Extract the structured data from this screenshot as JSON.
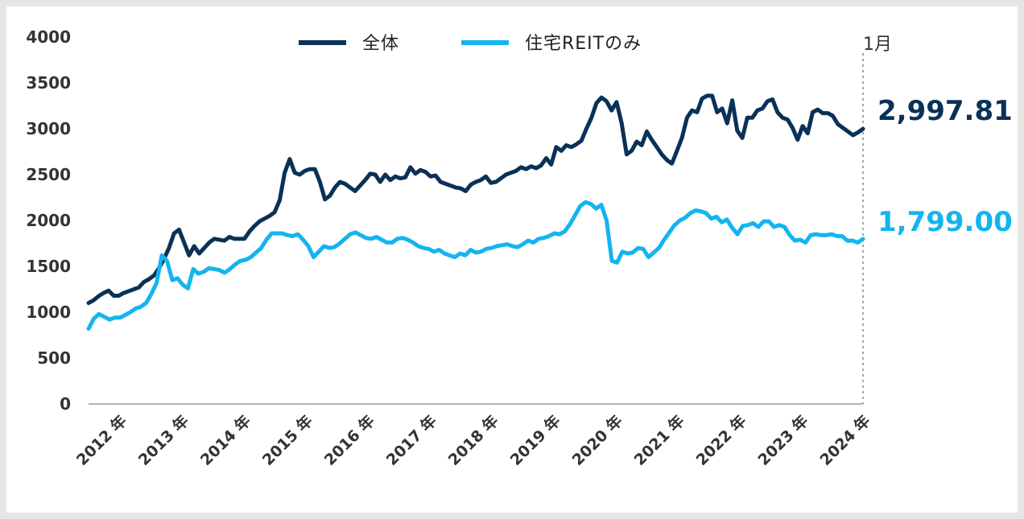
{
  "chart_data": {
    "type": "line",
    "title": "",
    "xlabel": "",
    "ylabel": "",
    "ylim": [
      0,
      4000
    ],
    "y_ticks": [
      "4000",
      "3500",
      "3000",
      "2500",
      "2000",
      "1500",
      "1000",
      "500",
      "0"
    ],
    "x_tick_labels": [
      "2012 年",
      "2013 年",
      "2014 年",
      "2015 年",
      "2016 年",
      "2017 年",
      "2018 年",
      "2019 年",
      "2020 年",
      "2021 年",
      "2022 年",
      "2023 年",
      "2024 年"
    ],
    "x_ticks_at": [
      2012,
      2013,
      2014,
      2015,
      2016,
      2017,
      2018,
      2019,
      2020,
      2021,
      2022,
      2023,
      2024
    ],
    "x_start": 2011.5,
    "current_marker": {
      "x": 2024,
      "label": "1月"
    },
    "legend_position": "top-center",
    "grid": false,
    "series": [
      {
        "name": "全体",
        "color": "#0a3157",
        "end_label": "2,997.81",
        "values": [
          1100,
          1130,
          1175,
          1210,
          1235,
          1180,
          1180,
          1210,
          1230,
          1250,
          1270,
          1330,
          1360,
          1400,
          1480,
          1580,
          1700,
          1860,
          1900,
          1760,
          1620,
          1720,
          1640,
          1700,
          1760,
          1800,
          1790,
          1780,
          1820,
          1800,
          1800,
          1800,
          1880,
          1940,
          1990,
          2020,
          2050,
          2090,
          2220,
          2520,
          2670,
          2520,
          2500,
          2540,
          2560,
          2560,
          2420,
          2230,
          2270,
          2360,
          2420,
          2400,
          2360,
          2320,
          2380,
          2440,
          2510,
          2500,
          2420,
          2500,
          2440,
          2480,
          2460,
          2470,
          2580,
          2510,
          2550,
          2530,
          2480,
          2490,
          2420,
          2400,
          2380,
          2360,
          2350,
          2320,
          2390,
          2420,
          2440,
          2480,
          2410,
          2420,
          2460,
          2500,
          2520,
          2540,
          2580,
          2560,
          2590,
          2570,
          2600,
          2680,
          2610,
          2800,
          2760,
          2820,
          2800,
          2830,
          2870,
          3000,
          3120,
          3280,
          3340,
          3300,
          3200,
          3290,
          3060,
          2720,
          2760,
          2860,
          2820,
          2970,
          2880,
          2800,
          2720,
          2660,
          2620,
          2760,
          2900,
          3120,
          3200,
          3180,
          3330,
          3360,
          3360,
          3180,
          3220,
          3060,
          3310,
          2980,
          2900,
          3120,
          3120,
          3200,
          3220,
          3300,
          3320,
          3180,
          3120,
          3100,
          3010,
          2880,
          3030,
          2950,
          3180,
          3210,
          3170,
          3170,
          3140,
          3050,
          3010,
          2970,
          2930,
          2960,
          2997.81
        ]
      },
      {
        "name": "住宅REITのみ",
        "color": "#14b4ef",
        "end_label": "1,799.00",
        "values": [
          820,
          930,
          980,
          950,
          920,
          940,
          940,
          970,
          1000,
          1040,
          1060,
          1100,
          1200,
          1320,
          1620,
          1560,
          1350,
          1370,
          1300,
          1260,
          1470,
          1420,
          1440,
          1480,
          1470,
          1460,
          1430,
          1470,
          1520,
          1560,
          1570,
          1600,
          1650,
          1700,
          1790,
          1860,
          1860,
          1860,
          1840,
          1830,
          1850,
          1790,
          1720,
          1600,
          1660,
          1720,
          1700,
          1710,
          1750,
          1800,
          1850,
          1870,
          1840,
          1810,
          1800,
          1820,
          1790,
          1760,
          1760,
          1800,
          1810,
          1790,
          1760,
          1720,
          1700,
          1690,
          1660,
          1680,
          1640,
          1620,
          1600,
          1640,
          1620,
          1680,
          1650,
          1660,
          1690,
          1700,
          1720,
          1730,
          1740,
          1720,
          1710,
          1740,
          1780,
          1760,
          1800,
          1810,
          1830,
          1860,
          1850,
          1880,
          1960,
          2060,
          2160,
          2200,
          2180,
          2130,
          2170,
          2000,
          1560,
          1540,
          1660,
          1640,
          1650,
          1700,
          1690,
          1600,
          1650,
          1700,
          1790,
          1870,
          1950,
          2000,
          2030,
          2080,
          2110,
          2100,
          2080,
          2020,
          2040,
          1980,
          2010,
          1920,
          1850,
          1940,
          1950,
          1970,
          1930,
          1990,
          1990,
          1930,
          1950,
          1930,
          1840,
          1780,
          1790,
          1760,
          1840,
          1850,
          1840,
          1840,
          1850,
          1830,
          1830,
          1780,
          1780,
          1760,
          1799.0
        ]
      }
    ]
  }
}
